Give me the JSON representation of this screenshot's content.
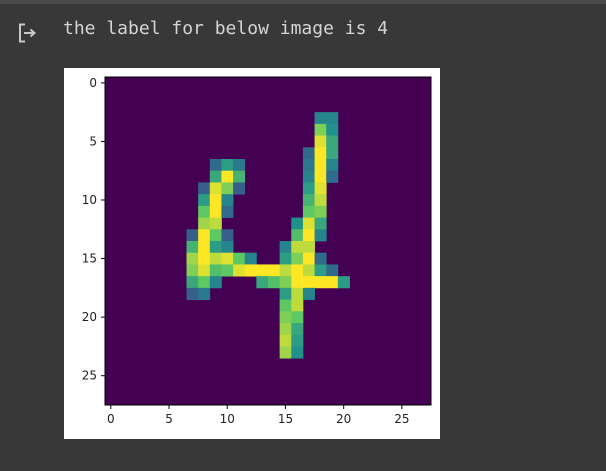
{
  "output": {
    "text": "the label for below image is 4",
    "icon": "output-redirect-icon"
  },
  "chart_data": {
    "type": "heatmap",
    "title": "",
    "xlabel": "",
    "ylabel": "",
    "colormap": "viridis",
    "rows": 28,
    "cols": 28,
    "xlim": [
      -0.5,
      27.5
    ],
    "ylim": [
      27.5,
      -0.5
    ],
    "x_ticks": [
      0,
      5,
      10,
      15,
      20,
      25
    ],
    "y_ticks": [
      0,
      5,
      10,
      15,
      20,
      25
    ],
    "x_tick_labels": [
      "0",
      "5",
      "10",
      "15",
      "20",
      "25"
    ],
    "y_tick_labels": [
      "0",
      "5",
      "10",
      "15",
      "20",
      "25"
    ],
    "nonzero_pixels": [
      [
        3,
        18,
        0.45
      ],
      [
        3,
        19,
        0.45
      ],
      [
        4,
        18,
        0.8
      ],
      [
        4,
        19,
        0.5
      ],
      [
        5,
        18,
        0.95
      ],
      [
        5,
        19,
        0.6
      ],
      [
        6,
        17,
        0.35
      ],
      [
        6,
        18,
        1.0
      ],
      [
        6,
        19,
        0.6
      ],
      [
        7,
        9,
        0.35
      ],
      [
        7,
        10,
        0.55
      ],
      [
        7,
        11,
        0.4
      ],
      [
        7,
        17,
        0.4
      ],
      [
        7,
        18,
        1.0
      ],
      [
        7,
        19,
        0.45
      ],
      [
        8,
        9,
        0.6
      ],
      [
        8,
        10,
        1.0
      ],
      [
        8,
        11,
        0.65
      ],
      [
        8,
        17,
        0.45
      ],
      [
        8,
        18,
        1.0
      ],
      [
        8,
        19,
        0.35
      ],
      [
        9,
        8,
        0.3
      ],
      [
        9,
        9,
        0.95
      ],
      [
        9,
        10,
        0.8
      ],
      [
        9,
        11,
        0.3
      ],
      [
        9,
        17,
        0.55
      ],
      [
        9,
        18,
        0.95
      ],
      [
        10,
        8,
        0.55
      ],
      [
        10,
        9,
        1.0
      ],
      [
        10,
        10,
        0.45
      ],
      [
        10,
        17,
        0.65
      ],
      [
        10,
        18,
        0.9
      ],
      [
        11,
        8,
        0.75
      ],
      [
        11,
        9,
        1.0
      ],
      [
        11,
        10,
        0.35
      ],
      [
        11,
        17,
        0.75
      ],
      [
        11,
        18,
        0.8
      ],
      [
        12,
        8,
        0.85
      ],
      [
        12,
        9,
        0.9
      ],
      [
        12,
        16,
        0.5
      ],
      [
        12,
        17,
        0.95
      ],
      [
        12,
        18,
        0.6
      ],
      [
        13,
        7,
        0.3
      ],
      [
        13,
        8,
        1.0
      ],
      [
        13,
        9,
        0.75
      ],
      [
        13,
        10,
        0.3
      ],
      [
        13,
        16,
        0.7
      ],
      [
        13,
        17,
        1.0
      ],
      [
        13,
        18,
        0.45
      ],
      [
        14,
        7,
        0.65
      ],
      [
        14,
        8,
        1.0
      ],
      [
        14,
        9,
        0.55
      ],
      [
        14,
        10,
        0.45
      ],
      [
        14,
        15,
        0.45
      ],
      [
        14,
        16,
        0.9
      ],
      [
        14,
        17,
        0.9
      ],
      [
        15,
        7,
        0.85
      ],
      [
        15,
        8,
        1.0
      ],
      [
        15,
        9,
        0.9
      ],
      [
        15,
        10,
        0.95
      ],
      [
        15,
        11,
        0.75
      ],
      [
        15,
        12,
        0.45
      ],
      [
        15,
        15,
        0.55
      ],
      [
        15,
        16,
        0.8
      ],
      [
        15,
        17,
        1.0
      ],
      [
        15,
        18,
        0.35
      ],
      [
        16,
        7,
        0.8
      ],
      [
        16,
        8,
        0.95
      ],
      [
        16,
        9,
        0.7
      ],
      [
        16,
        10,
        0.75
      ],
      [
        16,
        11,
        0.95
      ],
      [
        16,
        12,
        1.0
      ],
      [
        16,
        13,
        1.0
      ],
      [
        16,
        14,
        1.0
      ],
      [
        16,
        15,
        0.9
      ],
      [
        16,
        16,
        1.0
      ],
      [
        16,
        17,
        0.9
      ],
      [
        16,
        18,
        0.55
      ],
      [
        16,
        19,
        0.35
      ],
      [
        17,
        7,
        0.6
      ],
      [
        17,
        8,
        0.75
      ],
      [
        17,
        9,
        0.45
      ],
      [
        17,
        13,
        0.6
      ],
      [
        17,
        14,
        0.7
      ],
      [
        17,
        15,
        0.8
      ],
      [
        17,
        16,
        1.0
      ],
      [
        17,
        17,
        1.0
      ],
      [
        17,
        18,
        1.0
      ],
      [
        17,
        19,
        1.0
      ],
      [
        17,
        20,
        0.55
      ],
      [
        18,
        7,
        0.3
      ],
      [
        18,
        8,
        0.4
      ],
      [
        18,
        15,
        0.55
      ],
      [
        18,
        16,
        0.9
      ],
      [
        18,
        17,
        0.45
      ],
      [
        19,
        15,
        0.75
      ],
      [
        19,
        16,
        0.9
      ],
      [
        20,
        15,
        0.8
      ],
      [
        20,
        16,
        0.75
      ],
      [
        21,
        15,
        0.85
      ],
      [
        21,
        16,
        0.6
      ],
      [
        22,
        15,
        0.9
      ],
      [
        22,
        16,
        0.55
      ],
      [
        23,
        15,
        0.85
      ],
      [
        23,
        16,
        0.5
      ]
    ]
  }
}
